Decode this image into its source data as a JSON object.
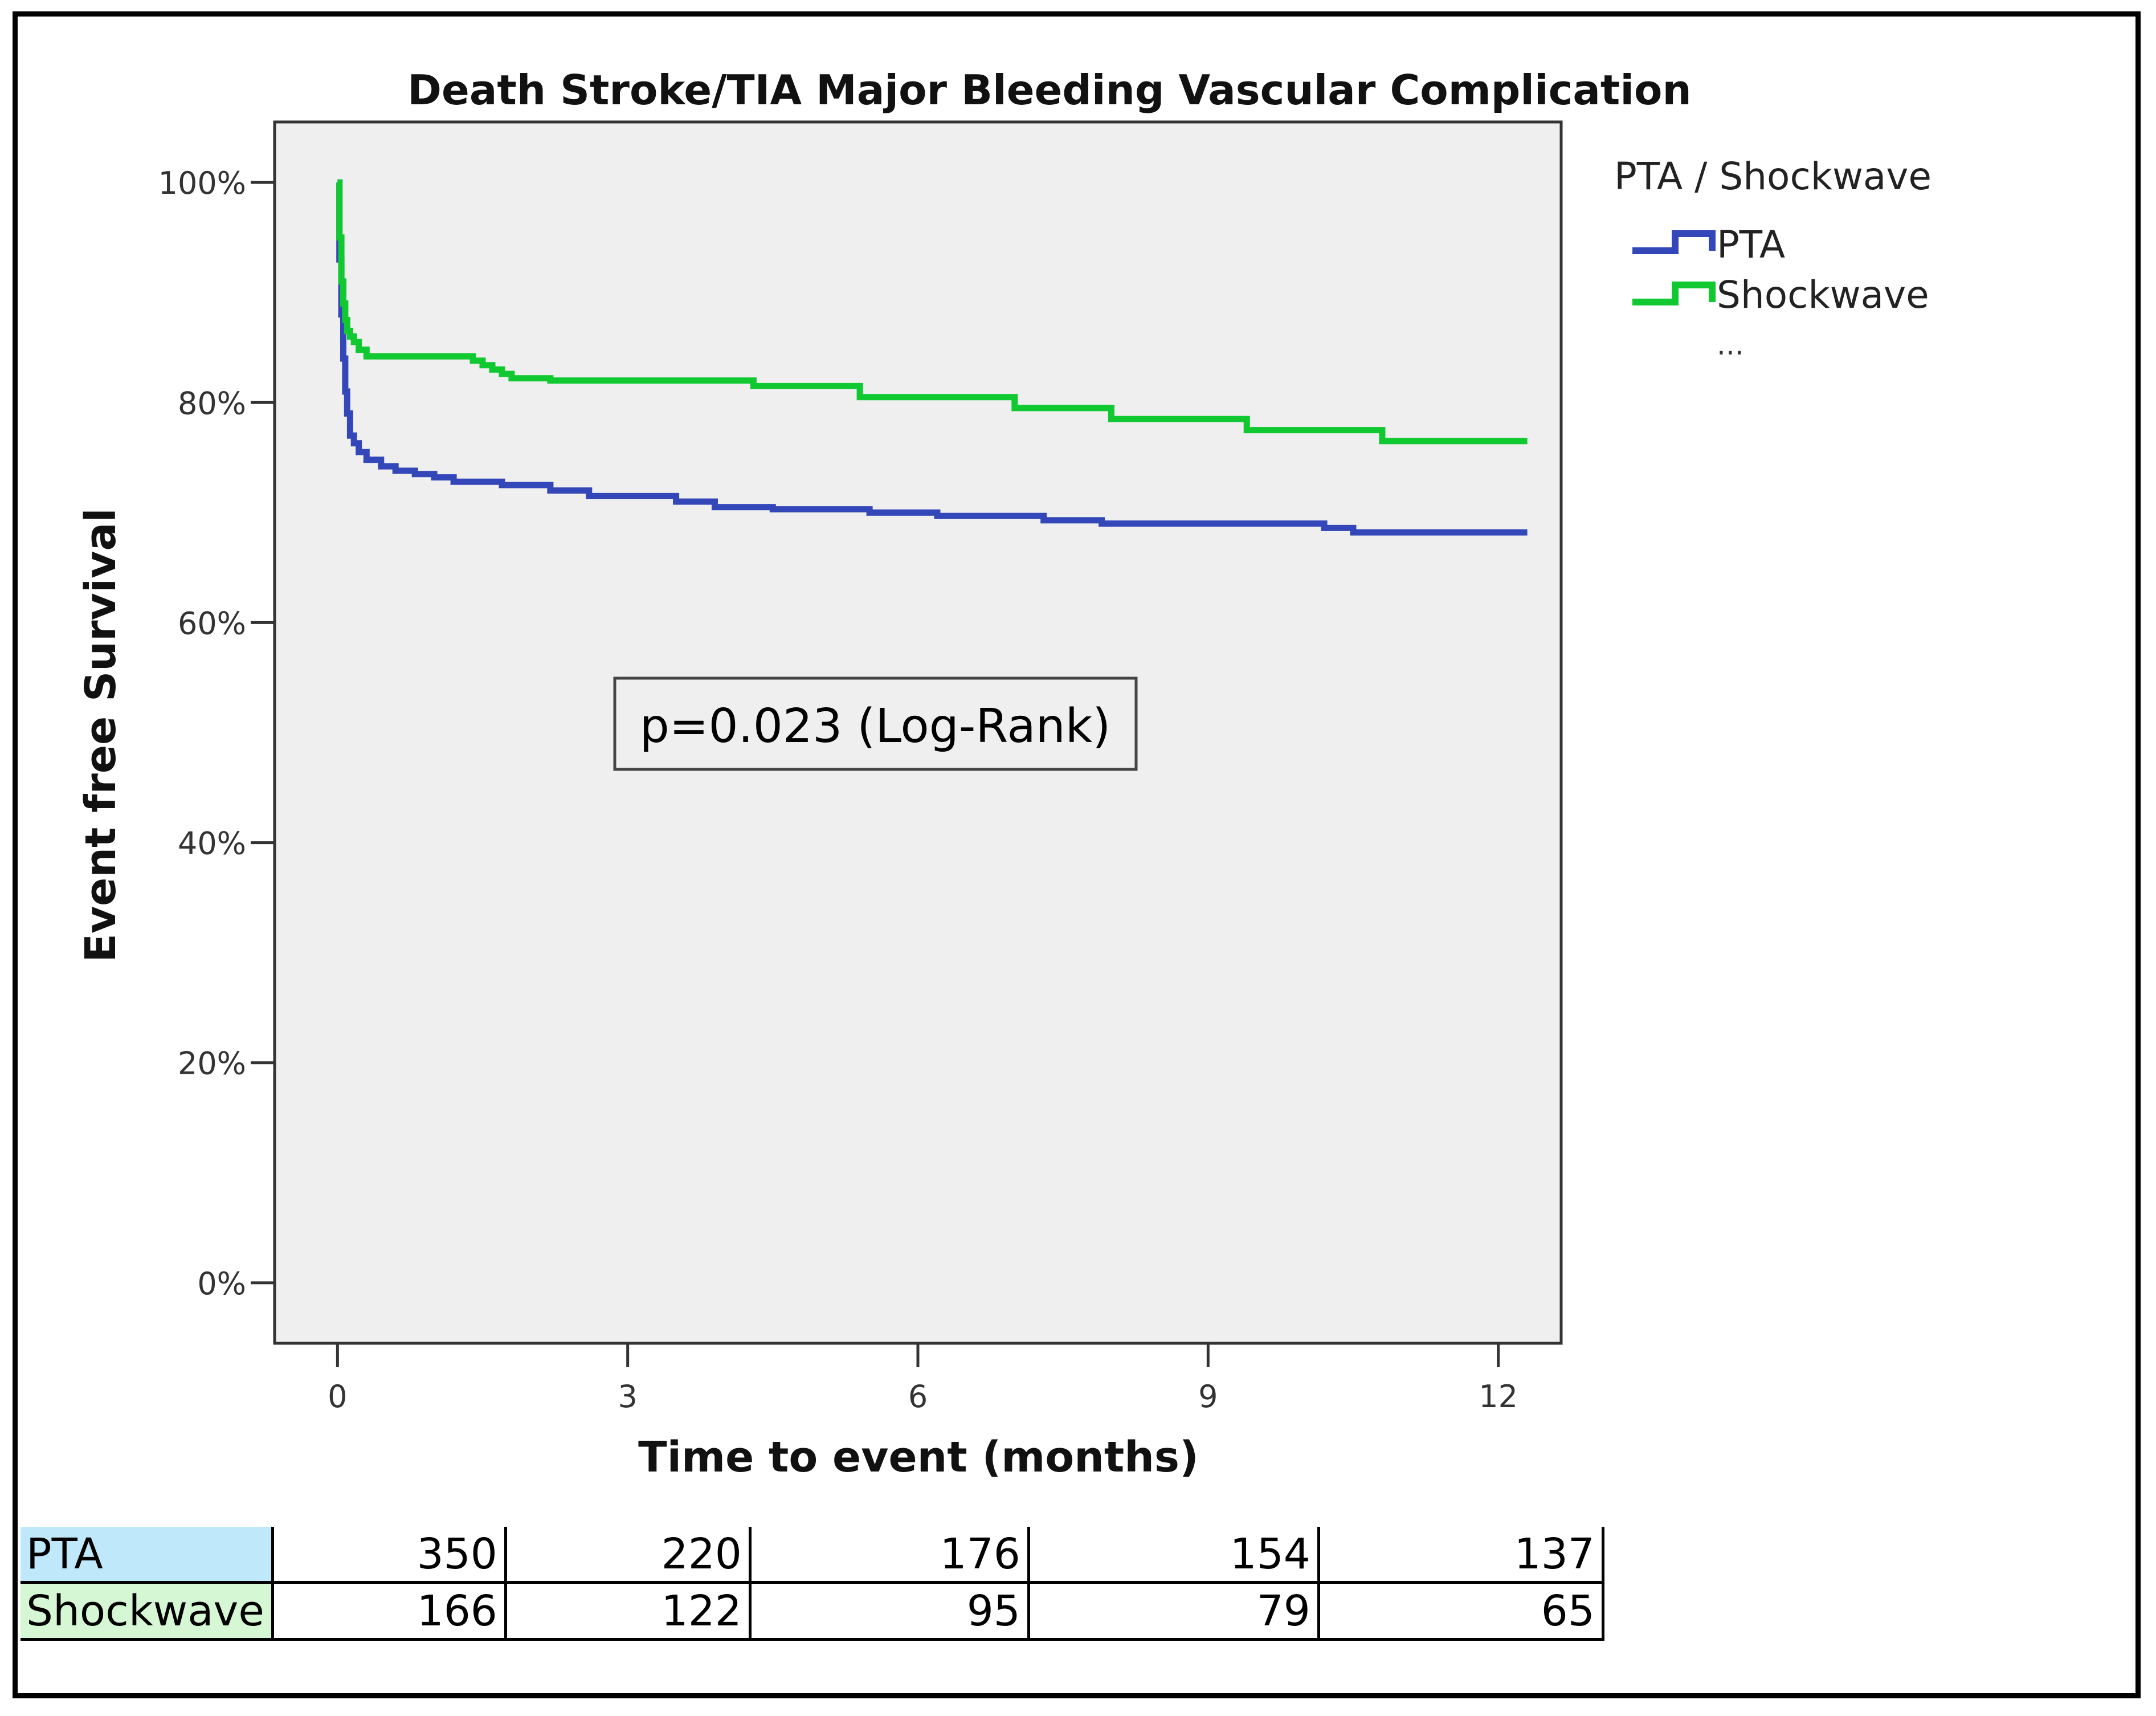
{
  "chart_data": {
    "type": "line",
    "title": "Death Stroke/TIA Major Bleeding Vascular Complication",
    "xlabel": "Time to event (months)",
    "ylabel": "Event free Survival",
    "xlim": [
      -0.65,
      12.65
    ],
    "ylim": [
      -0.055,
      1.055
    ],
    "x_ticks": [
      0,
      3,
      6,
      9,
      12
    ],
    "y_ticks": [
      0,
      0.2,
      0.4,
      0.6,
      0.8,
      1.0
    ],
    "y_tick_labels": [
      "0%",
      "20%",
      "40%",
      "60%",
      "80%",
      "100%"
    ],
    "grid": false,
    "legend_title": "PTA / Shockwave",
    "legend_ellipsis": "...",
    "legend_position": "top-right outside",
    "annotation": "p=0.023 (Log-Rank)",
    "series": [
      {
        "name": "PTA",
        "color": "#3347b9",
        "x": [
          0,
          0.02,
          0.04,
          0.06,
          0.08,
          0.1,
          0.13,
          0.17,
          0.22,
          0.3,
          0.45,
          0.6,
          0.8,
          1.0,
          1.2,
          1.7,
          2.2,
          2.6,
          3.5,
          3.9,
          4.5,
          5.5,
          6.2,
          7.3,
          7.9,
          8.5,
          10.2,
          10.5,
          12.3
        ],
        "y": [
          1.0,
          0.93,
          0.88,
          0.84,
          0.81,
          0.79,
          0.77,
          0.763,
          0.755,
          0.748,
          0.742,
          0.738,
          0.735,
          0.732,
          0.728,
          0.725,
          0.72,
          0.715,
          0.71,
          0.705,
          0.703,
          0.7,
          0.697,
          0.693,
          0.69,
          0.69,
          0.686,
          0.682,
          0.682
        ]
      },
      {
        "name": "Shockwave",
        "color": "#10c830",
        "x": [
          0,
          0.02,
          0.04,
          0.06,
          0.08,
          0.1,
          0.13,
          0.17,
          0.22,
          0.3,
          1.4,
          1.5,
          1.6,
          1.7,
          1.8,
          2.2,
          4.3,
          5.4,
          7.0,
          8.0,
          9.4,
          10.8,
          12.3
        ],
        "y": [
          1.0,
          0.95,
          0.91,
          0.89,
          0.875,
          0.865,
          0.86,
          0.855,
          0.848,
          0.842,
          0.838,
          0.834,
          0.83,
          0.826,
          0.822,
          0.82,
          0.815,
          0.805,
          0.795,
          0.785,
          0.775,
          0.765,
          0.765
        ]
      }
    ]
  },
  "risk_table": {
    "rows": [
      {
        "label": "PTA",
        "color": "#bfe9fb",
        "values": [
          "350",
          "220",
          "176",
          "154",
          "137"
        ]
      },
      {
        "label": "Shockwave",
        "color": "#d6f7d3",
        "values": [
          "166",
          "122",
          "95",
          "79",
          "65"
        ]
      }
    ]
  }
}
